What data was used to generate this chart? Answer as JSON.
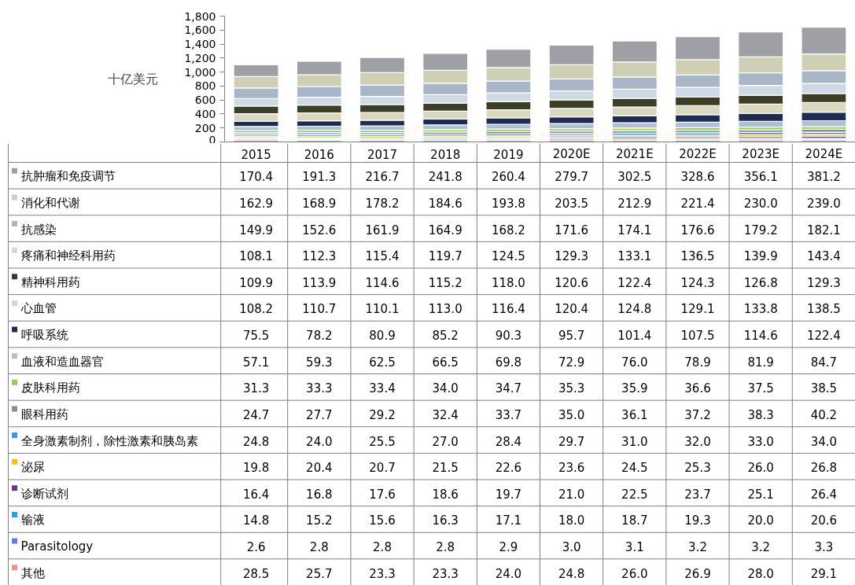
{
  "chart_data": {
    "type": "bar",
    "stacked": true,
    "ylabel": "十亿美元",
    "categories": [
      "2015",
      "2016",
      "2017",
      "2018",
      "2019",
      "2020E",
      "2021E",
      "2022E",
      "2023E",
      "2024E"
    ],
    "ylim": [
      0,
      1800
    ],
    "yticks": [
      0,
      200,
      400,
      600,
      800,
      {
        "value": 1000,
        "label": "1,000"
      },
      {
        "value": 1200,
        "label": "1,200"
      },
      {
        "value": 1400,
        "label": "1,400"
      },
      {
        "value": 1600,
        "label": "1,600"
      },
      {
        "value": 1800,
        "label": "1,800"
      }
    ],
    "grid": false,
    "legend": "bottom",
    "series": [
      {
        "name": "其他",
        "color": "#ff8b8b",
        "values": [
          28.5,
          25.7,
          23.3,
          23.3,
          24.0,
          24.8,
          26.0,
          26.9,
          28.0,
          29.1
        ],
        "value_labels": [
          "28.5",
          "25.7",
          "23.3",
          "23.3",
          "24.0",
          "24.8",
          "26.0",
          "26.9",
          "28.0",
          "29.1"
        ]
      },
      {
        "name": "Parasitology",
        "color": "#5b7cff",
        "values": [
          2.6,
          2.8,
          2.8,
          2.8,
          2.9,
          3.0,
          3.1,
          3.2,
          3.2,
          3.3
        ],
        "value_labels": [
          "2.6",
          "2.8",
          "2.8",
          "2.8",
          "2.9",
          "3.0",
          "3.1",
          "3.2",
          "3.2",
          "3.3"
        ]
      },
      {
        "name": "输液",
        "color": "#00b0f0",
        "values": [
          14.8,
          15.2,
          15.6,
          16.3,
          17.1,
          18.0,
          18.7,
          19.3,
          20.0,
          20.6
        ],
        "value_labels": [
          "14.8",
          "15.2",
          "15.6",
          "16.3",
          "17.1",
          "18.0",
          "18.7",
          "19.3",
          "20.0",
          "20.6"
        ]
      },
      {
        "name": "诊断试剂",
        "color": "#7030a0",
        "values": [
          16.4,
          16.8,
          17.6,
          18.6,
          19.7,
          21.0,
          22.5,
          23.7,
          25.1,
          26.4
        ],
        "value_labels": [
          "16.4",
          "16.8",
          "17.6",
          "18.6",
          "19.7",
          "21.0",
          "22.5",
          "23.7",
          "25.1",
          "26.4"
        ]
      },
      {
        "name": "泌尿",
        "color": "#ffc000",
        "values": [
          19.8,
          20.4,
          20.7,
          21.5,
          22.6,
          23.6,
          24.5,
          25.3,
          26.0,
          26.8
        ],
        "value_labels": [
          "19.8",
          "20.4",
          "20.7",
          "21.5",
          "22.6",
          "23.6",
          "24.5",
          "25.3",
          "26.0",
          "26.8"
        ]
      },
      {
        "name": "全身激素制剂，除性激素和胰岛素",
        "color": "#3399ff",
        "values": [
          24.8,
          24.0,
          25.5,
          27.0,
          28.4,
          29.7,
          31.0,
          32.0,
          33.0,
          34.0
        ],
        "value_labels": [
          "24.8",
          "24.0",
          "25.5",
          "27.0",
          "28.4",
          "29.7",
          "31.0",
          "32.0",
          "33.0",
          "34.0"
        ]
      },
      {
        "name": "眼科用药",
        "color": "#8c8c8c",
        "values": [
          24.7,
          27.7,
          29.2,
          32.4,
          33.7,
          35.0,
          36.1,
          37.2,
          38.3,
          40.2
        ],
        "value_labels": [
          "24.7",
          "27.7",
          "29.2",
          "32.4",
          "33.7",
          "35.0",
          "36.1",
          "37.2",
          "38.3",
          "40.2"
        ]
      },
      {
        "name": "皮肤科用药",
        "color": "#92d050",
        "values": [
          31.3,
          33.3,
          33.4,
          34.0,
          34.7,
          35.3,
          35.9,
          36.6,
          37.5,
          38.5
        ],
        "value_labels": [
          "31.3",
          "33.3",
          "33.4",
          "34.0",
          "34.7",
          "35.3",
          "35.9",
          "36.6",
          "37.5",
          "38.5"
        ]
      },
      {
        "name": "血液和造血器官",
        "color": "#aebfd6",
        "values": [
          57.1,
          59.3,
          62.5,
          66.5,
          69.8,
          72.9,
          76.0,
          78.9,
          81.9,
          84.7
        ],
        "value_labels": [
          "57.1",
          "59.3",
          "62.5",
          "66.5",
          "69.8",
          "72.9",
          "76.0",
          "78.9",
          "81.9",
          "84.7"
        ]
      },
      {
        "name": "呼吸系统",
        "color": "#1f2c52",
        "values": [
          75.5,
          78.2,
          80.9,
          85.2,
          90.3,
          95.7,
          101.4,
          107.5,
          114.6,
          122.4
        ],
        "value_labels": [
          "75.5",
          "78.2",
          "80.9",
          "85.2",
          "90.3",
          "95.7",
          "101.4",
          "107.5",
          "114.6",
          "122.4"
        ]
      },
      {
        "name": "心血管",
        "color": "#d9d8bf",
        "values": [
          108.2,
          110.7,
          110.1,
          113.0,
          116.4,
          120.4,
          124.8,
          129.1,
          133.8,
          138.5
        ],
        "value_labels": [
          "108.2",
          "110.7",
          "110.1",
          "113.0",
          "116.4",
          "120.4",
          "124.8",
          "129.1",
          "133.8",
          "138.5"
        ]
      },
      {
        "name": "精神科用药",
        "color": "#3d3e26",
        "values": [
          109.9,
          113.9,
          114.6,
          115.2,
          118.0,
          120.6,
          122.4,
          124.3,
          126.8,
          129.3
        ],
        "value_labels": [
          "109.9",
          "113.9",
          "114.6",
          "115.2",
          "118.0",
          "120.6",
          "122.4",
          "124.3",
          "126.8",
          "129.3"
        ]
      },
      {
        "name": "疼痛和神经科用药",
        "color": "#ced9e6",
        "values": [
          108.1,
          112.3,
          115.4,
          119.7,
          124.5,
          129.3,
          133.1,
          136.5,
          139.9,
          143.4
        ],
        "value_labels": [
          "108.1",
          "112.3",
          "115.4",
          "119.7",
          "124.5",
          "129.3",
          "133.1",
          "136.5",
          "139.9",
          "143.4"
        ]
      },
      {
        "name": "抗感染",
        "color": "#a8b6c8",
        "values": [
          149.9,
          152.6,
          161.9,
          164.9,
          168.2,
          171.6,
          174.1,
          176.6,
          179.2,
          182.1
        ],
        "value_labels": [
          "149.9",
          "152.6",
          "161.9",
          "164.9",
          "168.2",
          "171.6",
          "174.1",
          "176.6",
          "179.2",
          "182.1"
        ]
      },
      {
        "name": "消化和代谢",
        "color": "#cfcfb6",
        "values": [
          162.9,
          168.9,
          178.2,
          184.6,
          193.8,
          203.5,
          212.9,
          221.4,
          230.0,
          239.0
        ],
        "value_labels": [
          "162.9",
          "168.9",
          "178.2",
          "184.6",
          "193.8",
          "203.5",
          "212.9",
          "221.4",
          "230.0",
          "239.0"
        ]
      },
      {
        "name": "抗肿瘤和免疫调节",
        "color": "#9fa0a6",
        "values": [
          170.4,
          191.3,
          216.7,
          241.8,
          260.4,
          279.7,
          302.5,
          328.6,
          356.1,
          381.2
        ],
        "value_labels": [
          "170.4",
          "191.3",
          "216.7",
          "241.8",
          "260.4",
          "279.7",
          "302.5",
          "328.6",
          "356.1",
          "381.2"
        ]
      }
    ]
  }
}
